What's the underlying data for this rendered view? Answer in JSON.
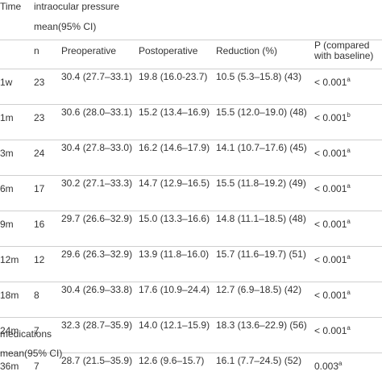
{
  "header": {
    "time": "Time",
    "group_title_line1": "intraocular pressure",
    "group_title_line2": "mean(95% CI)",
    "n": "n",
    "preoperative": "Preoperative",
    "postoperative": "Postoperative",
    "reduction": "Reduction (%)",
    "p": "P (compared with baseline)"
  },
  "rows": [
    {
      "time": "1w",
      "n": "23",
      "pre": "30.4 (27.7–33.1)",
      "post": "19.8 (16.0-23.7)",
      "red": "10.5 (5.3–15.8) (43)",
      "p": "< 0.001",
      "sup": "a"
    },
    {
      "time": "1m",
      "n": "23",
      "pre": "30.6 (28.0–33.1)",
      "post": "15.2 (13.4–16.9)",
      "red": "15.5 (12.0–19.0) (48)",
      "p": "< 0.001",
      "sup": "b"
    },
    {
      "time": "3m",
      "n": "24",
      "pre": "30.4 (27.8–33.0)",
      "post": "16.2 (14.6–17.9)",
      "red": "14.1 (10.7–17.6) (45)",
      "p": "< 0.001",
      "sup": "a"
    },
    {
      "time": "6m",
      "n": "17",
      "pre": "30.2 (27.1–33.3)",
      "post": "14.7 (12.9–16.5)",
      "red": "15.5 (11.8–19.2) (49)",
      "p": "< 0.001",
      "sup": "a"
    },
    {
      "time": "9m",
      "n": "16",
      "pre": "29.7 (26.6–32.9)",
      "post": "15.0 (13.3–16.6)",
      "red": "14.8 (11.1–18.5) (48)",
      "p": "< 0.001",
      "sup": "a"
    },
    {
      "time": "12m",
      "n": "12",
      "pre": "29.6 (26.3–32.9)",
      "post": "13.9 (11.8–16.0)",
      "red": "15.7 (11.6–19.7) (51)",
      "p": "< 0.001",
      "sup": "a"
    },
    {
      "time": "18m",
      "n": "8",
      "pre": "30.4 (26.9–33.8)",
      "post": "17.6 (10.9–24.4)",
      "red": "12.7 (6.9–18.5) (42)",
      "p": "< 0.001",
      "sup": "a"
    },
    {
      "time": "24m",
      "n": "7",
      "pre": "32.3 (28.7–35.9)",
      "post": "14.0 (12.1–15.9)",
      "red": "18.3 (13.6–22.9) (56)",
      "p": "< 0.001",
      "sup": "a"
    },
    {
      "time": "36m",
      "n": "7",
      "pre": "28.7 (21.5–35.9)",
      "post": "12.6 (9.6–15.7)",
      "red": "16.1 (7.7–24.5) (52)",
      "p": "0.003",
      "sup": "a"
    }
  ],
  "footer": {
    "line1": "medications",
    "line2": "mean(95% CI)"
  }
}
